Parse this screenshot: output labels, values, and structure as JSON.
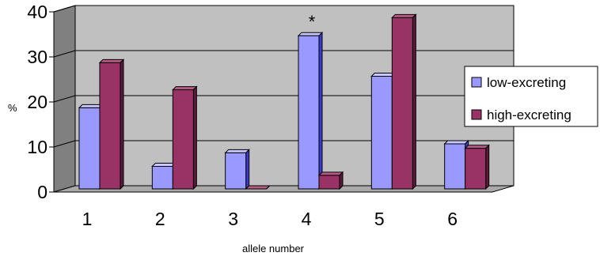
{
  "chart_data": {
    "type": "bar",
    "title": "",
    "xlabel": "allele number",
    "ylabel": "%",
    "categories": [
      "1",
      "2",
      "3",
      "4",
      "5",
      "6"
    ],
    "series": [
      {
        "name": "low-excreting",
        "values": [
          18,
          5,
          8,
          34,
          25,
          10
        ],
        "color": "#9999ff",
        "side_color": "#3a3ad0",
        "top_color": "#c8c8ff"
      },
      {
        "name": "high-excreting",
        "values": [
          28,
          22,
          0,
          3,
          38,
          9
        ],
        "color": "#993366",
        "side_color": "#5a1a3a",
        "top_color": "#b85a86"
      }
    ],
    "ylim": [
      0,
      40
    ],
    "yticks": [
      0,
      10,
      20,
      30,
      40
    ],
    "grid": true,
    "legend_position": "right",
    "annotations": [
      {
        "text": "*",
        "category": "4",
        "series": "low-excreting"
      }
    ],
    "colors": {
      "wall": "#c0c0c0",
      "wall_side": "#808080",
      "floor": "#a9a9a9",
      "outline": "#000000"
    }
  }
}
